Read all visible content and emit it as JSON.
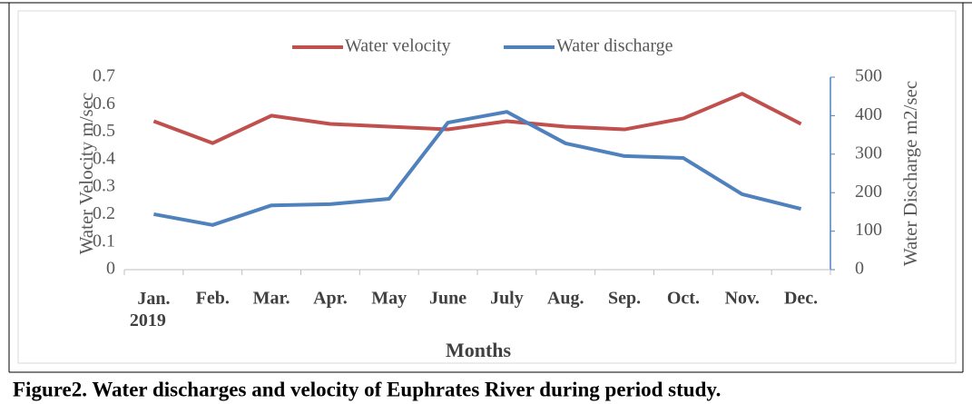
{
  "chart_data": {
    "type": "line",
    "caption": "Figure2. Water discharges and velocity of Euphrates River during period study.",
    "x_label": "Months",
    "y_label": "Water Velocity m/sec",
    "y2_label": "Water Discharge m2/sec",
    "categories": [
      "Jan. 2019",
      "Feb.",
      "Mar.",
      "Apr.",
      "May",
      "June",
      "July",
      "Aug.",
      "Sep.",
      "Oct.",
      "Nov.",
      "Dec."
    ],
    "series": [
      {
        "name": "Water velocity",
        "color": "#c0504d",
        "values": [
          0.54,
          0.46,
          0.56,
          0.53,
          0.52,
          0.51,
          0.54,
          0.52,
          0.51,
          0.55,
          0.64,
          0.53
        ]
      },
      {
        "name": "Water discharge",
        "color": "#4f81bd",
        "axis": "y2",
        "values": [
          144,
          116,
          167,
          170,
          184,
          382,
          410,
          328,
          295,
          290,
          196,
          158
        ]
      }
    ],
    "ylim": [
      0,
      0.7
    ],
    "yticks": [
      0,
      0.1,
      0.2,
      0.3,
      0.4,
      0.5,
      0.6,
      0.7
    ],
    "y2lim": [
      0,
      500
    ],
    "y2ticks": [
      0,
      100,
      200,
      300,
      400,
      500
    ],
    "legend": "top"
  }
}
